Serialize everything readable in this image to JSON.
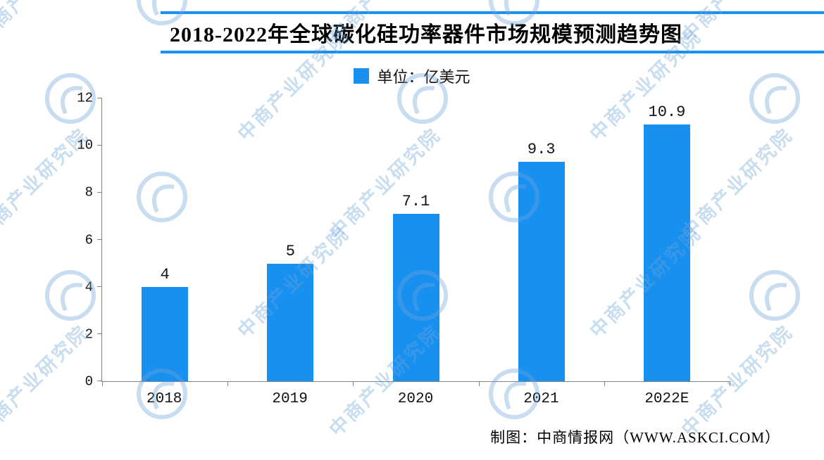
{
  "title": "2018-2022年全球碳化硅功率器件市场规模预测趋势图",
  "legend": {
    "label": "单位：亿美元",
    "swatch_color": "#1890f0"
  },
  "watermark": {
    "text": "中商产业研究院",
    "color": "rgba(110,165,215,0.38)"
  },
  "footer": {
    "credit": "制图：中商情报网（WWW.ASKCI.COM）"
  },
  "colors": {
    "bar": "#1890f0",
    "title_rule": "#1890f0",
    "axis": "#808080",
    "text": "#000000"
  },
  "chart_data": {
    "type": "bar",
    "title": "2018-2022年全球碳化硅功率器件市场规模预测趋势图",
    "unit_label": "单位：亿美元",
    "categories": [
      "2018",
      "2019",
      "2020",
      "2021",
      "2022E"
    ],
    "values": [
      4,
      5,
      7.1,
      9.3,
      10.9
    ],
    "value_labels": [
      "4",
      "5",
      "7.1",
      "9.3",
      "10.9"
    ],
    "ylim": [
      0,
      12
    ],
    "yticks": [
      0,
      2,
      4,
      6,
      8,
      10,
      12
    ],
    "grid": false,
    "legend_position": "top-center",
    "bar_color": "#1890f0",
    "credit": "制图：中商情报网（WWW.ASKCI.COM）"
  }
}
